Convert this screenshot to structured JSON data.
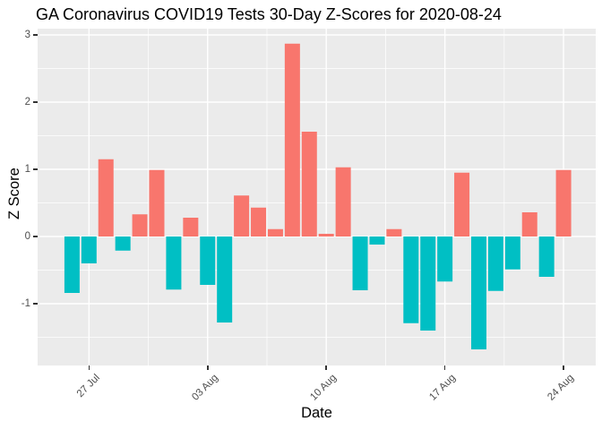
{
  "chart_data": {
    "type": "bar",
    "title": "GA Coronavirus COVID19 Tests 30-Day Z-Scores for 2020-08-24",
    "xlabel": "Date",
    "ylabel": "Z Score",
    "x": [
      "2020-07-26",
      "2020-07-27",
      "2020-07-28",
      "2020-07-29",
      "2020-07-30",
      "2020-07-31",
      "2020-08-01",
      "2020-08-02",
      "2020-08-03",
      "2020-08-04",
      "2020-08-05",
      "2020-08-06",
      "2020-08-07",
      "2020-08-08",
      "2020-08-09",
      "2020-08-10",
      "2020-08-11",
      "2020-08-12",
      "2020-08-13",
      "2020-08-14",
      "2020-08-15",
      "2020-08-16",
      "2020-08-17",
      "2020-08-18",
      "2020-08-19",
      "2020-08-20",
      "2020-08-21",
      "2020-08-22",
      "2020-08-23",
      "2020-08-24"
    ],
    "values": [
      -0.84,
      -0.4,
      1.15,
      -0.21,
      0.33,
      0.99,
      -0.79,
      0.28,
      -0.72,
      -1.28,
      0.61,
      0.43,
      0.11,
      2.87,
      1.56,
      0.04,
      1.03,
      -0.8,
      -0.12,
      0.11,
      -1.29,
      -1.4,
      -0.67,
      0.95,
      -1.68,
      -0.81,
      -0.49,
      0.36,
      -0.6,
      0.99
    ],
    "ylim": [
      -1.92,
      3.09
    ],
    "grid": true,
    "legend": "none",
    "y_ticks": [
      {
        "label": "3",
        "value": 3
      },
      {
        "label": "2",
        "value": 2
      },
      {
        "label": "1",
        "value": 1
      },
      {
        "label": "0",
        "value": 0
      },
      {
        "label": "-1",
        "value": -1
      }
    ],
    "y_minor_values": [
      2.5,
      1.5,
      0.5,
      -0.5,
      -1.5
    ],
    "x_ticks": [
      {
        "label": "27 Jul",
        "day_index": 1
      },
      {
        "label": "03 Aug",
        "day_index": 8
      },
      {
        "label": "10 Aug",
        "day_index": 15
      },
      {
        "label": "17 Aug",
        "day_index": 22
      },
      {
        "label": "24 Aug",
        "day_index": 29
      }
    ],
    "x_minor_day_indices": [
      4.5,
      11.5,
      18.5,
      25.5
    ],
    "colors": {
      "positive": "#F8766D",
      "negative": "#00BFC4",
      "panel_bg": "#EBEBEB",
      "grid": "#FFFFFF",
      "axis_text": "#4D4D4D",
      "tick_mark": "#333333",
      "title_text": "#000000"
    }
  }
}
